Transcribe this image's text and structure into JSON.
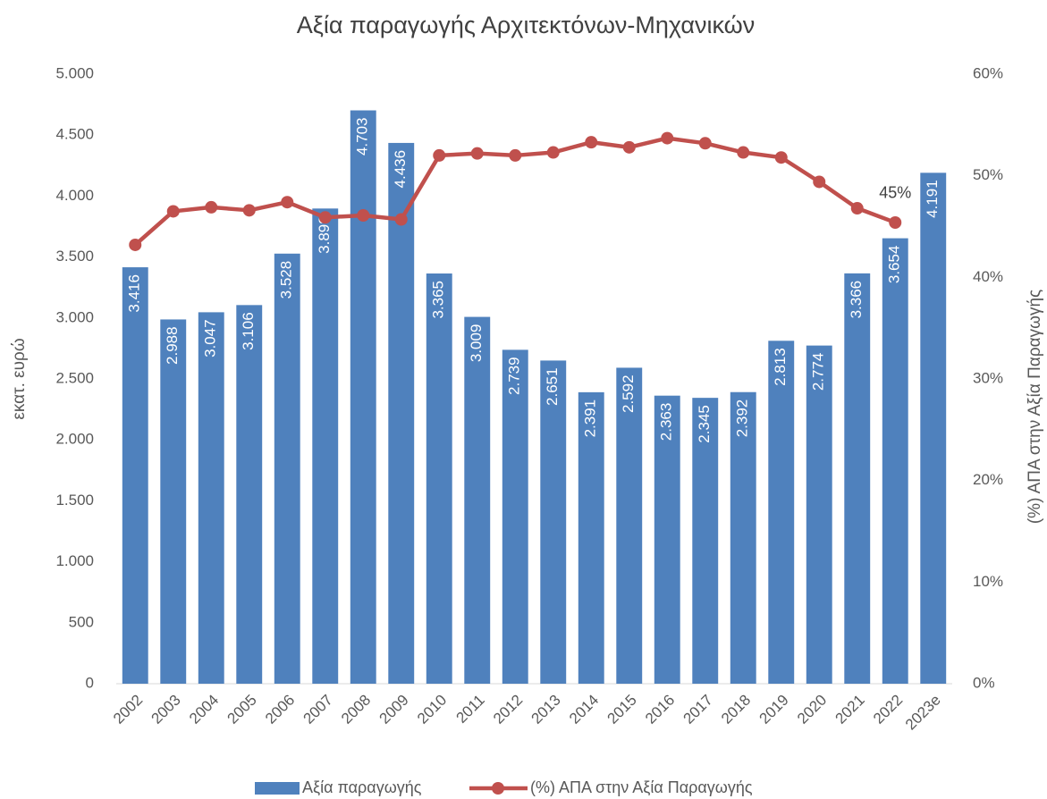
{
  "chart_data": {
    "type": "bar",
    "title": "Αξία παραγωγής Αρχιτεκτόνων-Μηχανικών",
    "y_label": "εκατ. ευρώ",
    "y2_label": "(%) ΑΠΑ στην Αξία Παραγωγής",
    "categories": [
      "2002",
      "2003",
      "2004",
      "2005",
      "2006",
      "2007",
      "2008",
      "2009",
      "2010",
      "2011",
      "2012",
      "2013",
      "2014",
      "2015",
      "2016",
      "2017",
      "2018",
      "2019",
      "2020",
      "2021",
      "2022",
      "2023e"
    ],
    "series": [
      {
        "name": "Αξία παραγωγής",
        "type": "bar",
        "color": "#4f81bd",
        "values": [
          3416,
          2988,
          3047,
          3106,
          3528,
          3898,
          4703,
          4436,
          3365,
          3009,
          2739,
          2651,
          2391,
          2592,
          2363,
          2345,
          2392,
          2813,
          2774,
          3366,
          3654,
          4191
        ],
        "value_labels": [
          "3.416",
          "2.988",
          "3.047",
          "3.106",
          "3.528",
          "3.898",
          "4.703",
          "4.436",
          "3.365",
          "3.009",
          "2.739",
          "2.651",
          "2.391",
          "2.592",
          "2.363",
          "2.345",
          "2.392",
          "2.813",
          "2.774",
          "3.366",
          "3.654",
          "4.191"
        ]
      },
      {
        "name": "(%) ΑΠΑ στην Αξία Παραγωγής",
        "type": "line",
        "axis": "y2",
        "color": "#c0504d",
        "values": [
          43.2,
          46.5,
          46.9,
          46.6,
          47.4,
          45.9,
          46.1,
          45.7,
          52.0,
          52.2,
          52.0,
          52.3,
          53.3,
          52.8,
          53.7,
          53.2,
          52.3,
          51.8,
          49.4,
          46.8,
          45.4,
          null
        ],
        "value_labels": [
          null,
          null,
          null,
          null,
          null,
          null,
          null,
          null,
          null,
          null,
          null,
          null,
          null,
          null,
          null,
          null,
          null,
          null,
          null,
          null,
          "45%",
          null
        ]
      }
    ],
    "ylim": [
      0,
      5000
    ],
    "yticks": [
      0,
      500,
      {
        "value": 1000,
        "label": "1.000"
      },
      {
        "value": 1500,
        "label": "1.500"
      },
      {
        "value": 2000,
        "label": "2.000"
      },
      {
        "value": 2500,
        "label": "2.500"
      },
      {
        "value": 3000,
        "label": "3.000"
      },
      {
        "value": 3500,
        "label": "3.500"
      },
      {
        "value": 4000,
        "label": "4.000"
      },
      {
        "value": 4500,
        "label": "4.500"
      },
      {
        "value": 5000,
        "label": "5.000"
      }
    ],
    "y2lim": [
      0,
      60
    ],
    "y2ticks": [
      {
        "value": 0,
        "label": "0%"
      },
      {
        "value": 10,
        "label": "10%"
      },
      {
        "value": 20,
        "label": "20%"
      },
      {
        "value": 30,
        "label": "30%"
      },
      {
        "value": 40,
        "label": "40%"
      },
      {
        "value": 50,
        "label": "50%"
      },
      {
        "value": 60,
        "label": "60%"
      }
    ],
    "grid": false,
    "legend": "bottom"
  }
}
